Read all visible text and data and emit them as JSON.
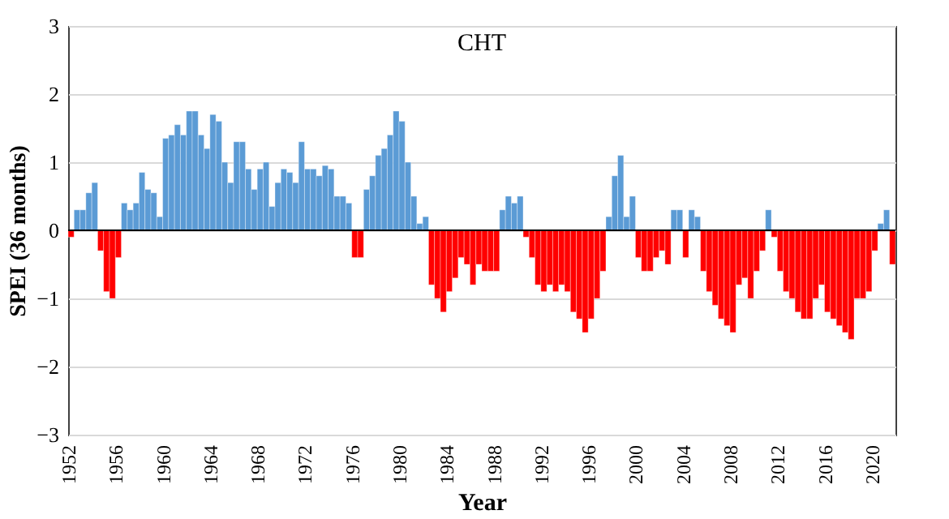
{
  "chart_data": {
    "type": "bar",
    "title": "CHT",
    "xlabel": "Year",
    "ylabel": "SPEI (36 months)",
    "x": [
      1952.25,
      1952.75,
      1953.25,
      1953.75,
      1954.25,
      1954.75,
      1955.25,
      1955.75,
      1956.25,
      1956.75,
      1957.25,
      1957.75,
      1958.25,
      1958.75,
      1959.25,
      1959.75,
      1960.25,
      1960.75,
      1961.25,
      1961.75,
      1962.25,
      1962.75,
      1963.25,
      1963.75,
      1964.25,
      1964.75,
      1965.25,
      1965.75,
      1966.25,
      1966.75,
      1967.25,
      1967.75,
      1968.25,
      1968.75,
      1969.25,
      1969.75,
      1970.25,
      1970.75,
      1971.25,
      1971.75,
      1972.25,
      1972.75,
      1973.25,
      1973.75,
      1974.25,
      1974.75,
      1975.25,
      1975.75,
      1976.25,
      1976.75,
      1977.25,
      1977.75,
      1978.25,
      1978.75,
      1979.25,
      1979.75,
      1980.25,
      1980.75,
      1981.25,
      1981.75,
      1982.25,
      1982.75,
      1983.25,
      1983.75,
      1984.25,
      1984.75,
      1985.25,
      1985.75,
      1986.25,
      1986.75,
      1987.25,
      1987.75,
      1988.25,
      1988.75,
      1989.25,
      1989.75,
      1990.25,
      1990.75,
      1991.25,
      1991.75,
      1992.25,
      1992.75,
      1993.25,
      1993.75,
      1994.25,
      1994.75,
      1995.25,
      1995.75,
      1996.25,
      1996.75,
      1997.25,
      1997.75,
      1998.25,
      1998.75,
      1999.25,
      1999.75,
      2000.25,
      2000.75,
      2001.25,
      2001.75,
      2002.25,
      2002.75,
      2003.25,
      2003.75,
      2004.25,
      2004.75,
      2005.25,
      2005.75,
      2006.25,
      2006.75,
      2007.25,
      2007.75,
      2008.25,
      2008.75,
      2009.25,
      2009.75,
      2010.25,
      2010.75,
      2011.25,
      2011.75,
      2012.25,
      2012.75,
      2013.25,
      2013.75,
      2014.25,
      2014.75,
      2015.25,
      2015.75,
      2016.25,
      2016.75,
      2017.25,
      2017.75,
      2018.25,
      2018.75,
      2019.25,
      2019.75,
      2020.25,
      2020.75,
      2021.25,
      2021.75
    ],
    "values": [
      -0.1,
      0.3,
      0.3,
      0.55,
      0.7,
      -0.3,
      -0.9,
      -1.0,
      -0.4,
      0.4,
      0.3,
      0.4,
      0.85,
      0.6,
      0.55,
      0.2,
      1.35,
      1.4,
      1.55,
      1.4,
      1.75,
      1.75,
      1.4,
      1.2,
      1.7,
      1.6,
      1.0,
      0.7,
      1.3,
      1.3,
      0.9,
      0.6,
      0.9,
      1.0,
      0.35,
      0.7,
      0.9,
      0.85,
      0.7,
      1.3,
      0.9,
      0.9,
      0.8,
      0.95,
      0.9,
      0.5,
      0.5,
      0.4,
      -0.4,
      -0.4,
      0.6,
      0.8,
      1.1,
      1.2,
      1.4,
      1.75,
      1.6,
      1.0,
      0.5,
      0.1,
      0.2,
      -0.8,
      -1.0,
      -1.2,
      -0.9,
      -0.7,
      -0.4,
      -0.5,
      -0.8,
      -0.5,
      -0.6,
      -0.6,
      -0.6,
      0.3,
      0.5,
      0.4,
      0.5,
      -0.1,
      -0.4,
      -0.8,
      -0.9,
      -0.8,
      -0.9,
      -0.8,
      -0.9,
      -1.2,
      -1.3,
      -1.5,
      -1.3,
      -1.0,
      -0.6,
      0.2,
      0.8,
      1.1,
      0.2,
      0.5,
      -0.4,
      -0.6,
      -0.6,
      -0.4,
      -0.3,
      -0.5,
      0.3,
      0.3,
      -0.4,
      0.3,
      0.2,
      -0.6,
      -0.9,
      -1.1,
      -1.3,
      -1.4,
      -1.5,
      -0.8,
      -0.7,
      -1.0,
      -0.6,
      -0.3,
      0.3,
      -0.1,
      -0.6,
      -0.9,
      -1.0,
      -1.2,
      -1.3,
      -1.3,
      -1.0,
      -0.8,
      -1.2,
      -1.3,
      -1.4,
      -1.5,
      -1.6,
      -1.0,
      -1.0,
      -0.9,
      -0.3,
      0.1,
      0.3,
      -0.5
    ],
    "colors": [
      "#ff0000",
      "#5b9bd5",
      "#5b9bd5",
      "#5b9bd5",
      "#5b9bd5",
      "#ff0000",
      "#ff0000",
      "#ff0000",
      "#ff0000",
      "#5b9bd5",
      "#5b9bd5",
      "#5b9bd5",
      "#5b9bd5",
      "#5b9bd5",
      "#5b9bd5",
      "#5b9bd5",
      "#5b9bd5",
      "#5b9bd5",
      "#5b9bd5",
      "#5b9bd5",
      "#5b9bd5",
      "#5b9bd5",
      "#5b9bd5",
      "#5b9bd5",
      "#5b9bd5",
      "#5b9bd5",
      "#5b9bd5",
      "#5b9bd5",
      "#5b9bd5",
      "#5b9bd5",
      "#5b9bd5",
      "#5b9bd5",
      "#5b9bd5",
      "#5b9bd5",
      "#5b9bd5",
      "#5b9bd5",
      "#5b9bd5",
      "#5b9bd5",
      "#5b9bd5",
      "#5b9bd5",
      "#5b9bd5",
      "#5b9bd5",
      "#5b9bd5",
      "#5b9bd5",
      "#5b9bd5",
      "#5b9bd5",
      "#5b9bd5",
      "#5b9bd5",
      "#ff0000",
      "#ff0000",
      "#5b9bd5",
      "#5b9bd5",
      "#5b9bd5",
      "#5b9bd5",
      "#5b9bd5",
      "#5b9bd5",
      "#5b9bd5",
      "#5b9bd5",
      "#5b9bd5",
      "#5b9bd5",
      "#5b9bd5",
      "#ff0000",
      "#ff0000",
      "#ff0000",
      "#ff0000",
      "#ff0000",
      "#ff0000",
      "#ff0000",
      "#ff0000",
      "#ff0000",
      "#ff0000",
      "#ff0000",
      "#ff0000",
      "#5b9bd5",
      "#5b9bd5",
      "#5b9bd5",
      "#5b9bd5",
      "#ff0000",
      "#ff0000",
      "#ff0000",
      "#ff0000",
      "#ff0000",
      "#ff0000",
      "#ff0000",
      "#ff0000",
      "#ff0000",
      "#ff0000",
      "#ff0000",
      "#ff0000",
      "#ff0000",
      "#ff0000",
      "#5b9bd5",
      "#5b9bd5",
      "#5b9bd5",
      "#5b9bd5",
      "#5b9bd5",
      "#ff0000",
      "#ff0000",
      "#ff0000",
      "#ff0000",
      "#ff0000",
      "#ff0000",
      "#5b9bd5",
      "#5b9bd5",
      "#ff0000",
      "#5b9bd5",
      "#5b9bd5",
      "#ff0000",
      "#ff0000",
      "#ff0000",
      "#ff0000",
      "#ff0000",
      "#ff0000",
      "#ff0000",
      "#ff0000",
      "#ff0000",
      "#ff0000",
      "#ff0000",
      "#5b9bd5",
      "#ff0000",
      "#ff0000",
      "#ff0000",
      "#ff0000",
      "#ff0000",
      "#ff0000",
      "#ff0000",
      "#ff0000",
      "#ff0000",
      "#ff0000",
      "#ff0000",
      "#ff0000",
      "#ff0000",
      "#ff0000",
      "#ff0000",
      "#ff0000",
      "#ff0000",
      "#ff0000",
      "#5b9bd5",
      "#5b9bd5",
      "#ff0000"
    ],
    "xlim": [
      1952,
      2022
    ],
    "xticks": [
      1952,
      1956,
      1960,
      1964,
      1968,
      1972,
      1976,
      1980,
      1984,
      1988,
      1992,
      1996,
      2000,
      2004,
      2008,
      2012,
      2016,
      2020
    ],
    "ylim": [
      -3,
      3
    ],
    "yticks": [
      -3,
      -2,
      -1,
      0,
      1,
      2,
      3
    ],
    "ref_lines": [
      {
        "axis": "y",
        "value": 0,
        "color": "#000000"
      }
    ],
    "grid": "y"
  }
}
